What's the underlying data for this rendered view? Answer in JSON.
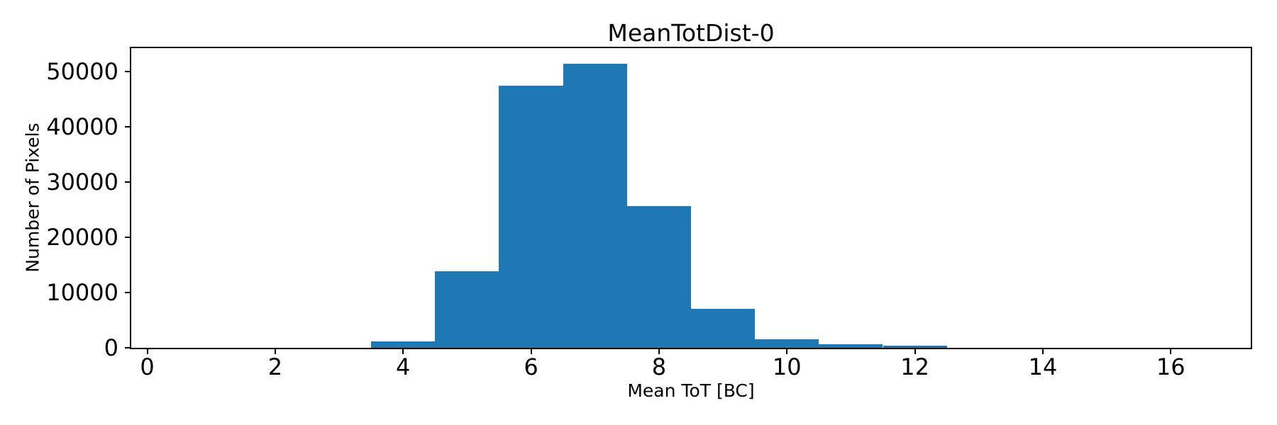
{
  "figure": {
    "background": "#ffffff"
  },
  "chart_data": {
    "type": "bar",
    "chart_kind": "histogram",
    "title": "MeanTotDist-0",
    "xlabel": "Mean ToT [BC]",
    "ylabel": "Number of Pixels",
    "bin_edges": [
      3.5,
      4.5,
      5.5,
      6.5,
      7.5,
      8.5,
      9.5,
      10.5,
      11.5,
      12.5
    ],
    "counts": [
      1100,
      13900,
      47400,
      51400,
      25600,
      7100,
      1500,
      600,
      400
    ],
    "xticks": [
      0,
      2,
      4,
      6,
      8,
      10,
      12,
      14,
      16
    ],
    "yticks": [
      0,
      10000,
      20000,
      30000,
      40000,
      50000
    ],
    "xlim": [
      -0.25,
      17.25
    ],
    "ylim": [
      0,
      54260
    ],
    "bar_color": "#1f77b4",
    "axis_color": "#000000",
    "text_color": "#000000",
    "grid": false,
    "legend_position": "none"
  }
}
